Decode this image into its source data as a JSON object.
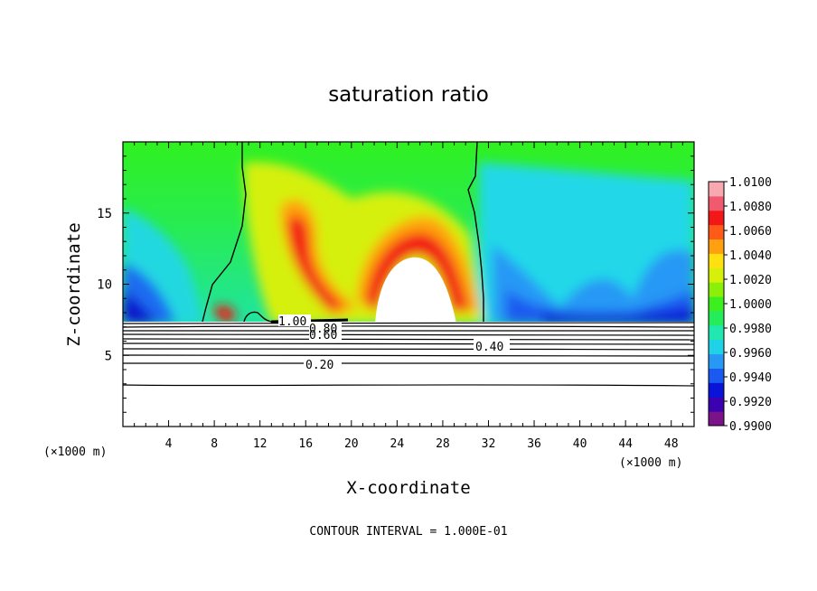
{
  "chart_data": {
    "type": "heatmap",
    "title": "saturation ratio",
    "xlabel": "X-coordinate",
    "ylabel": "Z-coordinate",
    "x_unit_left": "(×1000 m)",
    "x_unit_right": "(×1000 m)",
    "footer": "CONTOUR INTERVAL = 1.000E-01",
    "xlim": [
      0,
      50
    ],
    "ylim": [
      0,
      20
    ],
    "x_ticks": [
      4,
      8,
      12,
      16,
      20,
      24,
      28,
      32,
      36,
      40,
      44,
      48
    ],
    "y_ticks": [
      5,
      10,
      15
    ],
    "colorbar": {
      "range": [
        0.99,
        1.01
      ],
      "labels": [
        "1.0100",
        "1.0080",
        "1.0060",
        "1.0040",
        "1.0020",
        "1.0000",
        "0.9980",
        "0.9960",
        "0.9940",
        "0.9920",
        "0.9900"
      ],
      "colors": [
        "#7a138a",
        "#3b00b0",
        "#0a14d8",
        "#1a5af0",
        "#2898f5",
        "#20d2e8",
        "#20e8b0",
        "#25ec5a",
        "#3cf020",
        "#8af00a",
        "#d6f00a",
        "#ffe010",
        "#ffa010",
        "#ff5a18",
        "#f21818",
        "#f05a6e",
        "#f8a8b0"
      ]
    },
    "contour_labels": [
      "1.00",
      "0.80",
      "0.60",
      "0.40",
      "0.20"
    ]
  }
}
